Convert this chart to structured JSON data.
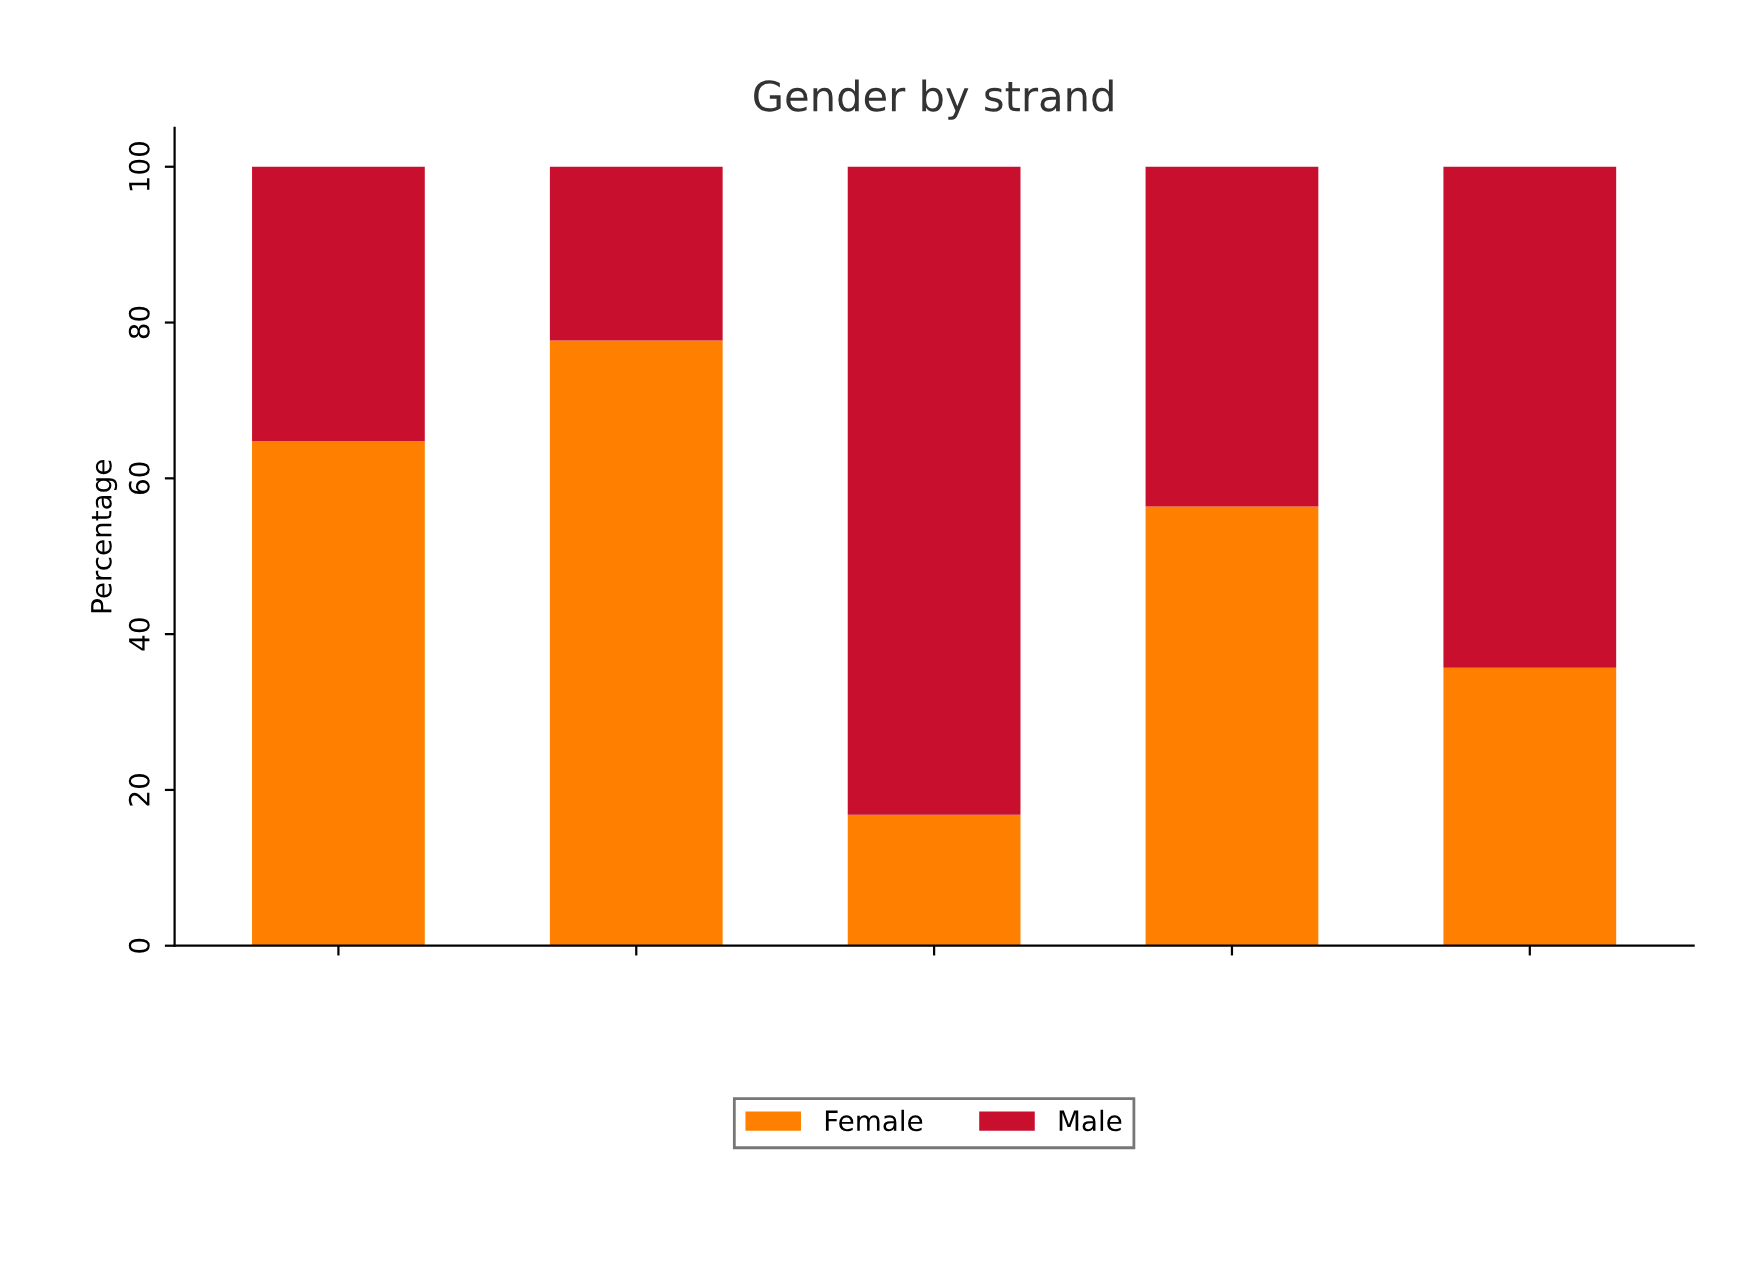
{
  "chart_data": {
    "type": "bar",
    "title": "Gender by strand",
    "ylabel": "Percentage",
    "categories": [
      null,
      null,
      null,
      null,
      null
    ],
    "stacked": true,
    "series": [
      {
        "name": "Female",
        "color": "#ff8000",
        "values": [
          64.8,
          77.7,
          16.8,
          56.4,
          35.7
        ]
      },
      {
        "name": "Male",
        "color": "#c8102e",
        "values": [
          35.2,
          22.3,
          83.2,
          43.6,
          64.3
        ]
      }
    ],
    "ylim": [
      0,
      105
    ],
    "yticks": [
      0,
      20,
      40,
      60,
      80,
      100
    ],
    "grid": false,
    "legend": "bottom"
  }
}
